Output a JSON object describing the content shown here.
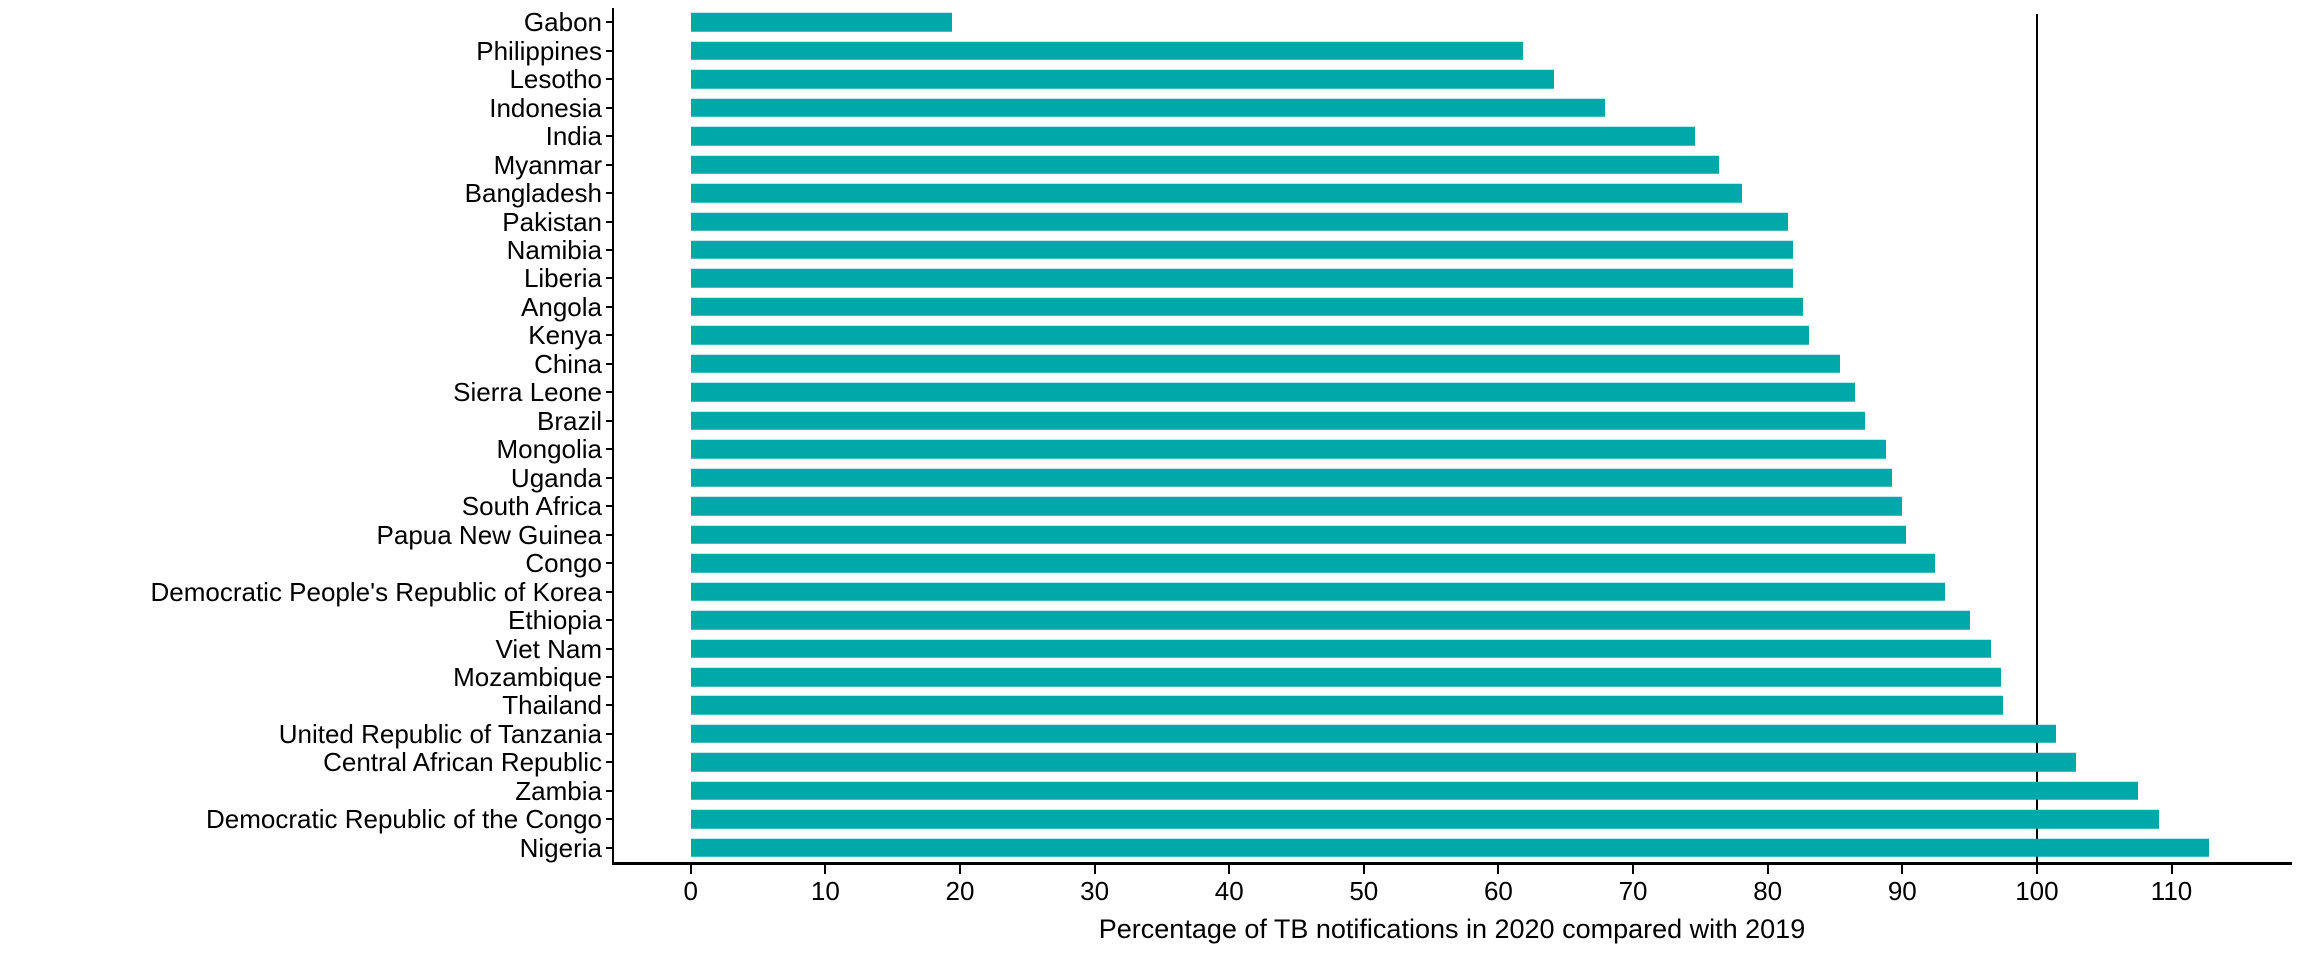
{
  "chart_data": {
    "type": "bar",
    "orientation": "horizontal",
    "title": "",
    "xlabel": "Percentage of TB notifications in 2020 compared with 2019",
    "ylabel": "",
    "categories": [
      "Gabon",
      "Philippines",
      "Lesotho",
      "Indonesia",
      "India",
      "Myanmar",
      "Bangladesh",
      "Pakistan",
      "Namibia",
      "Liberia",
      "Angola",
      "Kenya",
      "China",
      "Sierra Leone",
      "Brazil",
      "Mongolia",
      "Uganda",
      "South Africa",
      "Papua New Guinea",
      "Congo",
      "Democratic People's Republic of Korea",
      "Ethiopia",
      "Viet Nam",
      "Mozambique",
      "Thailand",
      "United Republic of Tanzania",
      "Central African Republic",
      "Zambia",
      "Democratic Republic of the Congo",
      "Nigeria"
    ],
    "values": [
      19.4,
      61.8,
      64.1,
      67.9,
      74.6,
      76.4,
      78.1,
      81.5,
      81.9,
      81.9,
      82.6,
      83.1,
      85.4,
      86.5,
      87.2,
      88.8,
      89.2,
      90.0,
      90.3,
      92.4,
      93.2,
      95.0,
      96.6,
      97.3,
      97.5,
      101.4,
      102.9,
      107.5,
      109.1,
      112.8
    ],
    "xticks": [
      0,
      10,
      20,
      30,
      40,
      50,
      60,
      70,
      80,
      90,
      100,
      110
    ],
    "xlim": [
      -5.7,
      118.8
    ],
    "reference_line_x": 100,
    "bar_color": "#00A8AA",
    "axis_color": "#000000",
    "grid": false,
    "legend": null
  }
}
